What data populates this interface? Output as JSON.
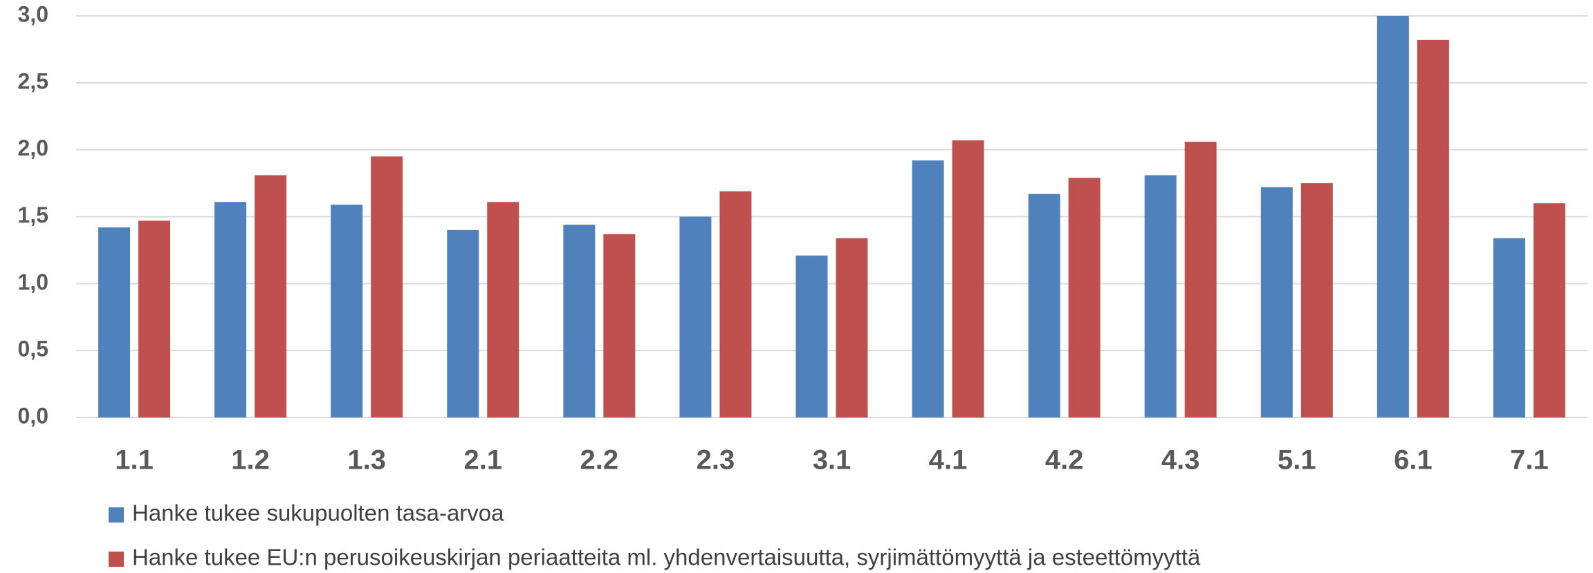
{
  "chart_data": {
    "type": "bar",
    "categories": [
      "1.1",
      "1.2",
      "1.3",
      "2.1",
      "2.2",
      "2.3",
      "3.1",
      "4.1",
      "4.2",
      "4.3",
      "5.1",
      "6.1",
      "7.1"
    ],
    "series": [
      {
        "name": "Hanke tukee sukupuolten tasa-arvoa",
        "color": "#4f81bd",
        "values": [
          1.42,
          1.61,
          1.59,
          1.4,
          1.44,
          1.5,
          1.21,
          1.92,
          1.67,
          1.81,
          1.72,
          3.0,
          1.34
        ]
      },
      {
        "name": "Hanke tukee EU:n perusoikeuskirjan periaatteita ml. yhdenvertaisuutta, syrjimättömyyttä ja esteettömyyttä",
        "color": "#c0504d",
        "values": [
          1.47,
          1.81,
          1.95,
          1.61,
          1.37,
          1.69,
          1.34,
          2.07,
          1.79,
          2.06,
          1.75,
          2.82,
          1.6
        ]
      }
    ],
    "ylim": [
      0,
      3
    ],
    "yticks": [
      {
        "value": 0,
        "label": "0,0"
      },
      {
        "value": 0.5,
        "label": "0,5"
      },
      {
        "value": 1,
        "label": "1,0"
      },
      {
        "value": 1.5,
        "label": "1,5"
      },
      {
        "value": 2,
        "label": "2,0"
      },
      {
        "value": 2.5,
        "label": "2,5"
      },
      {
        "value": 3,
        "label": "3,0"
      }
    ],
    "grid": true,
    "legend": "bottom"
  }
}
